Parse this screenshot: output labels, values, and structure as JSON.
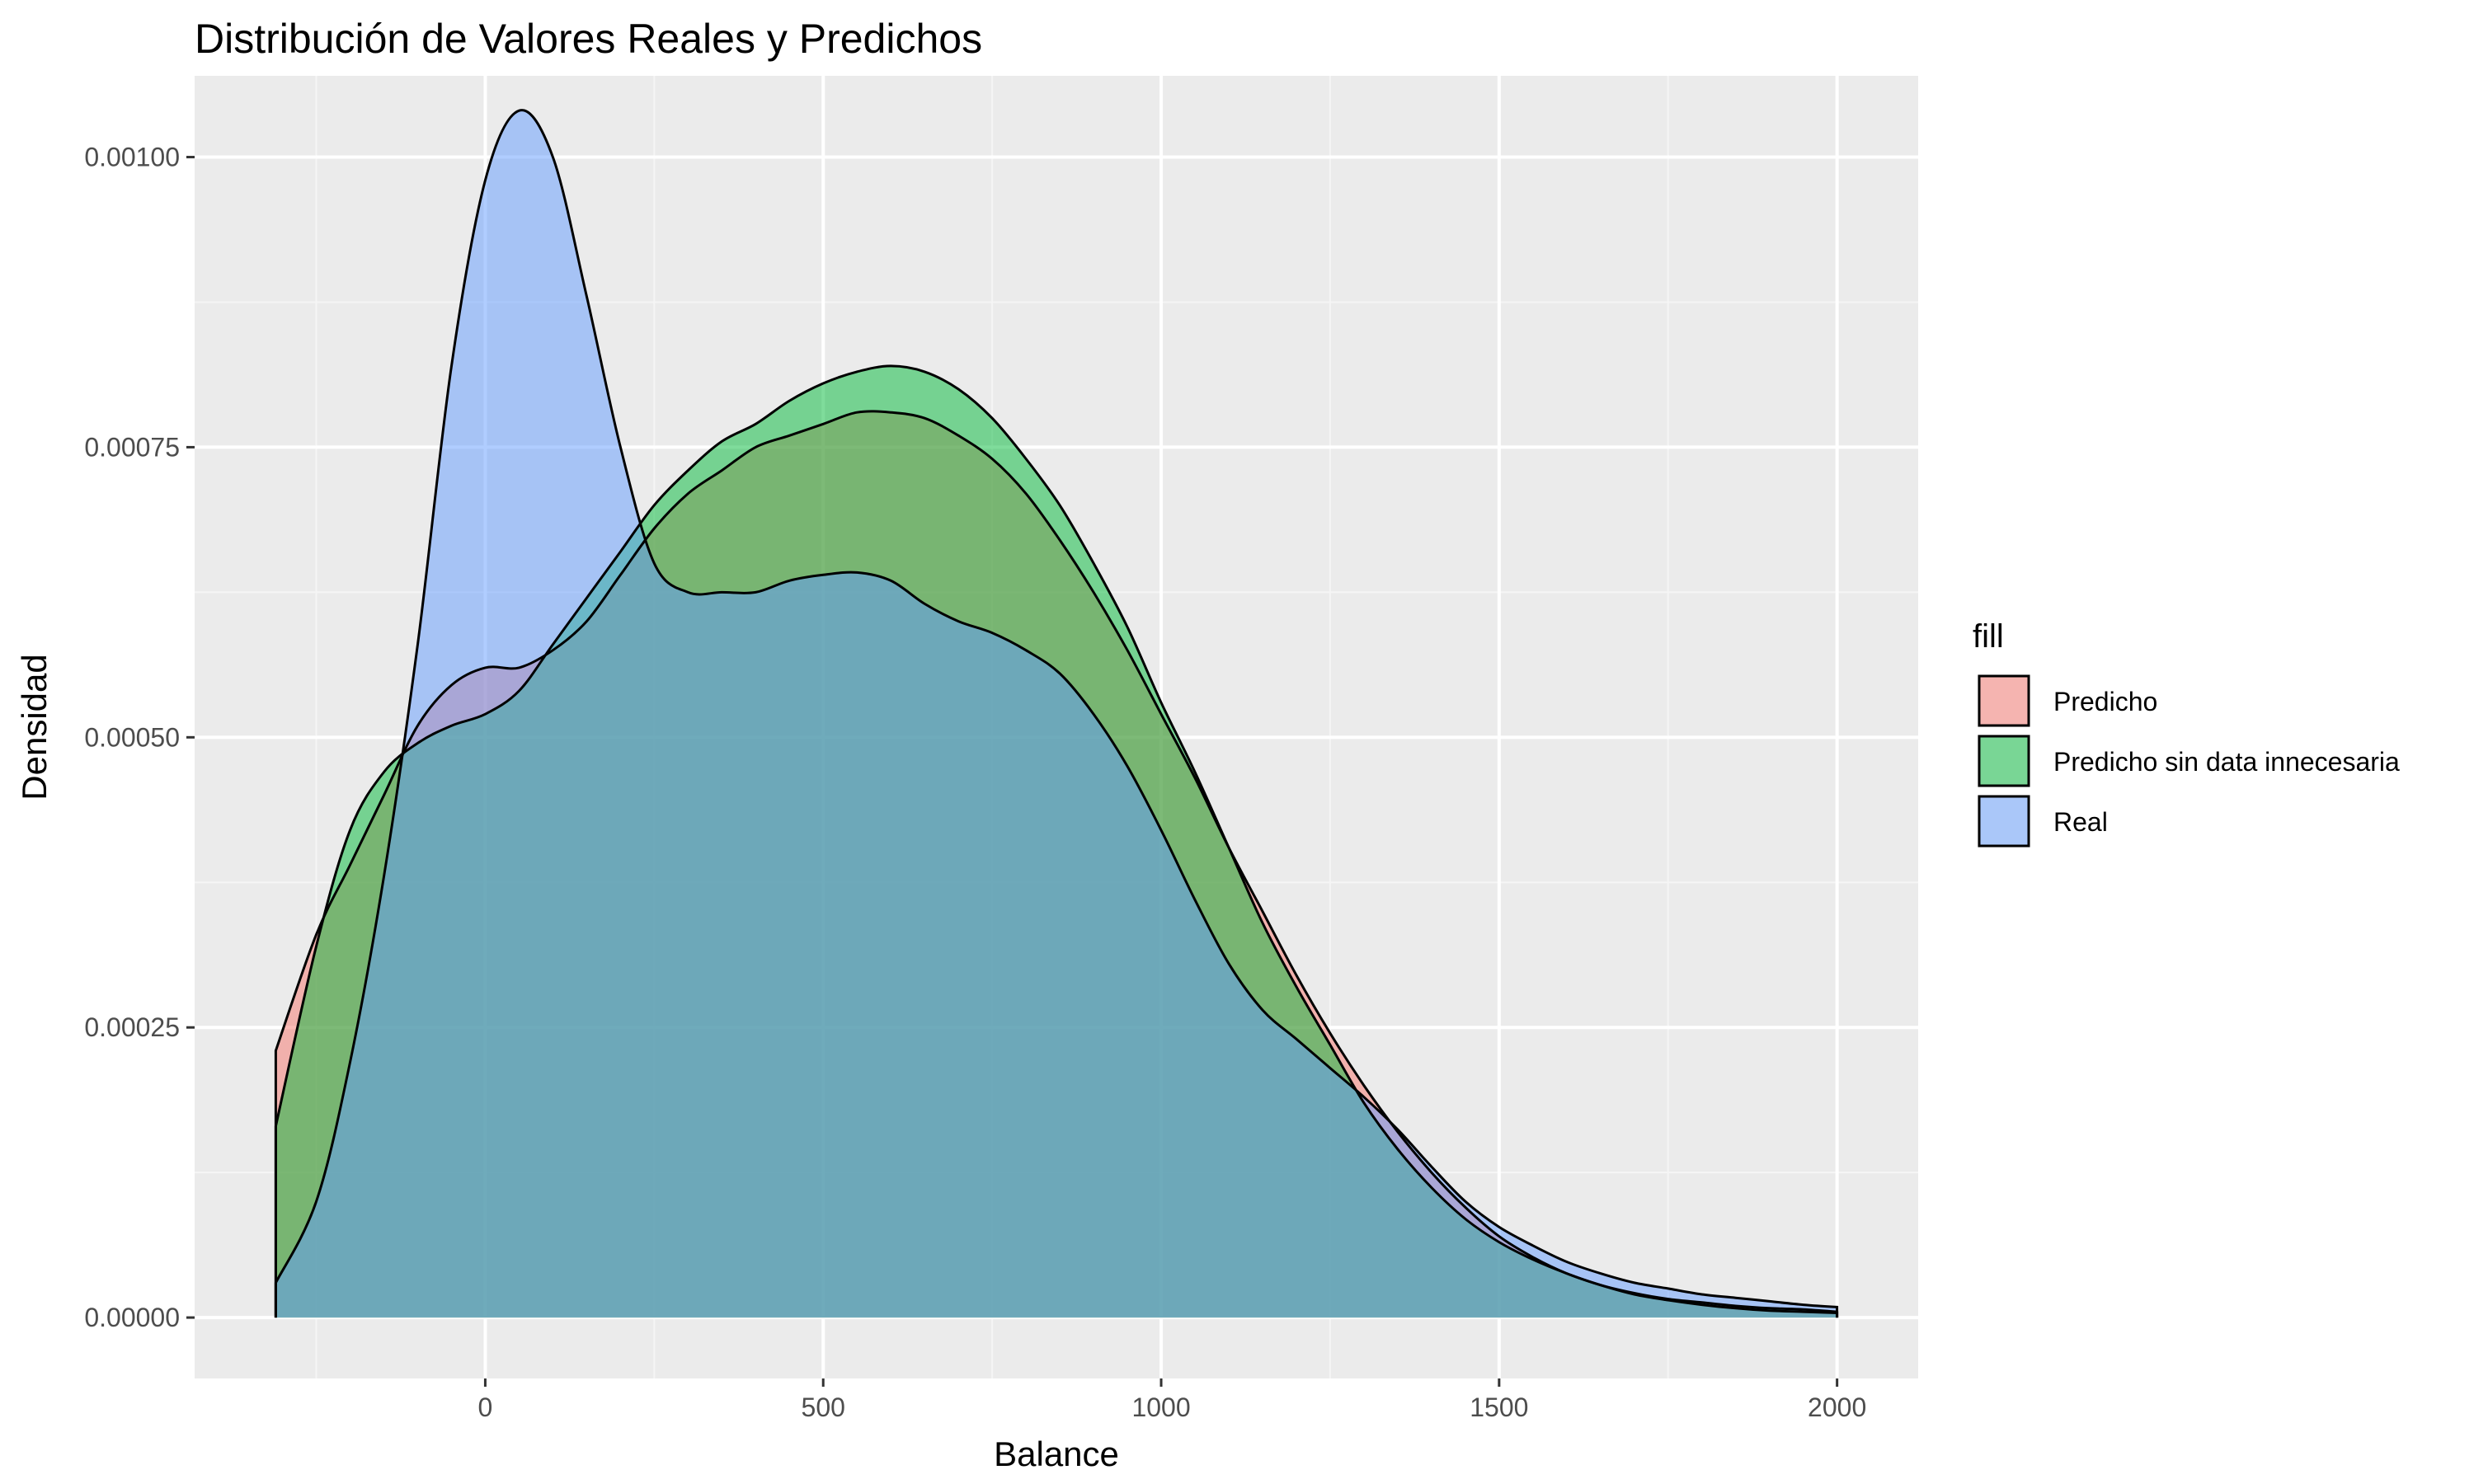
{
  "chart_data": {
    "type": "area",
    "title": "Distribución de Valores Reales y Predichos",
    "xlabel": "Balance",
    "ylabel": "Densidad",
    "xlim": [
      -430,
      2120
    ],
    "ylim": [
      -5.25e-05,
      0.00107
    ],
    "x_ticks": [
      0,
      500,
      1000,
      1500,
      2000
    ],
    "x_tick_labels": [
      "0",
      "500",
      "1000",
      "1500",
      "2000"
    ],
    "y_ticks": [
      0,
      0.00025,
      0.0005,
      0.00075,
      0.001
    ],
    "y_tick_labels": [
      "0.00000",
      "0.00025",
      "0.00050",
      "0.00075",
      "0.00100"
    ],
    "grid": true,
    "legend": {
      "title": "fill",
      "placement": "right"
    },
    "x": [
      -310,
      -250,
      -200,
      -150,
      -100,
      -50,
      0,
      50,
      100,
      150,
      200,
      250,
      300,
      350,
      400,
      450,
      500,
      550,
      600,
      650,
      700,
      750,
      800,
      850,
      900,
      950,
      1000,
      1050,
      1100,
      1150,
      1200,
      1250,
      1300,
      1350,
      1400,
      1450,
      1500,
      1550,
      1600,
      1650,
      1700,
      1750,
      1800,
      1850,
      1900,
      1950,
      2000
    ],
    "series": [
      {
        "name": "Predicho",
        "color": "#f8766d",
        "values": [
          0.00023,
          0.00033,
          0.00039,
          0.00045,
          0.00051,
          0.000545,
          0.00056,
          0.00056,
          0.000575,
          0.0006,
          0.00064,
          0.00068,
          0.00071,
          0.00073,
          0.00075,
          0.00076,
          0.00077,
          0.00078,
          0.00078,
          0.000775,
          0.00076,
          0.00074,
          0.00071,
          0.00067,
          0.000625,
          0.000575,
          0.00052,
          0.000465,
          0.000405,
          0.00035,
          0.000295,
          0.000245,
          0.0002,
          0.00016,
          0.000125,
          9.5e-05,
          7e-05,
          5.2e-05,
          3.8e-05,
          2.8e-05,
          2e-05,
          1.5e-05,
          1.1e-05,
          8e-06,
          6e-06,
          5e-06,
          4e-06
        ]
      },
      {
        "name": "Predicho sin data innecesaria",
        "color": "#00ba38",
        "values": [
          0.000165,
          0.00032,
          0.00042,
          0.00047,
          0.000495,
          0.00051,
          0.00052,
          0.00054,
          0.00058,
          0.00062,
          0.00066,
          0.0007,
          0.00073,
          0.000755,
          0.00077,
          0.00079,
          0.000805,
          0.000815,
          0.00082,
          0.000815,
          0.0008,
          0.000775,
          0.00074,
          0.0007,
          0.00065,
          0.000595,
          0.00053,
          0.00047,
          0.000405,
          0.00034,
          0.000285,
          0.000235,
          0.000185,
          0.000145,
          0.000112,
          8.5e-05,
          6.5e-05,
          5e-05,
          3.8e-05,
          2.8e-05,
          2.1e-05,
          1.6e-05,
          1.3e-05,
          1e-05,
          8e-06,
          7e-06,
          5e-06
        ]
      },
      {
        "name": "Real",
        "color": "#619cff",
        "values": [
          3e-05,
          0.0001,
          0.00022,
          0.00038,
          0.00058,
          0.00082,
          0.00098,
          0.00104,
          0.001,
          0.00088,
          0.00075,
          0.00065,
          0.000625,
          0.000625,
          0.000625,
          0.000635,
          0.00064,
          0.000642,
          0.000635,
          0.000615,
          0.0006,
          0.00059,
          0.000575,
          0.000555,
          0.00052,
          0.000475,
          0.00042,
          0.00036,
          0.000305,
          0.000265,
          0.00024,
          0.000215,
          0.00019,
          0.000162,
          0.00013,
          0.0001,
          7.8e-05,
          6.2e-05,
          4.8e-05,
          3.8e-05,
          3e-05,
          2.5e-05,
          2e-05,
          1.7e-05,
          1.4e-05,
          1.1e-05,
          9e-06
        ]
      }
    ]
  }
}
